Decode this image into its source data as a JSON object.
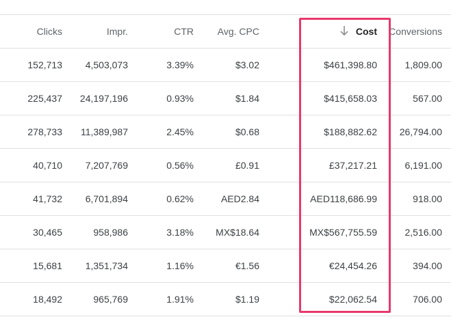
{
  "table": {
    "headers": [
      "Clicks",
      "Impr.",
      "CTR",
      "Avg. CPC",
      "Cost",
      "Conversions"
    ],
    "sorted_column": 4,
    "rows": [
      [
        "152,713",
        "4,503,073",
        "3.39%",
        "$3.02",
        "$461,398.80",
        "1,809.00"
      ],
      [
        "225,437",
        "24,197,196",
        "0.93%",
        "$1.84",
        "$415,658.03",
        "567.00"
      ],
      [
        "278,733",
        "11,389,987",
        "2.45%",
        "$0.68",
        "$188,882.62",
        "26,794.00"
      ],
      [
        "40,710",
        "7,207,769",
        "0.56%",
        "£0.91",
        "£37,217.21",
        "6,191.00"
      ],
      [
        "41,732",
        "6,701,894",
        "0.62%",
        "AED2.84",
        "AED118,686.99",
        "918.00"
      ],
      [
        "30,465",
        "958,986",
        "3.18%",
        "MX$18.64",
        "MX$567,755.59",
        "2,516.00"
      ],
      [
        "15,681",
        "1,351,734",
        "1.16%",
        "€1.56",
        "€24,454.26",
        "394.00"
      ],
      [
        "18,492",
        "965,769",
        "1.91%",
        "$1.19",
        "$22,062.54",
        "706.00"
      ]
    ]
  }
}
